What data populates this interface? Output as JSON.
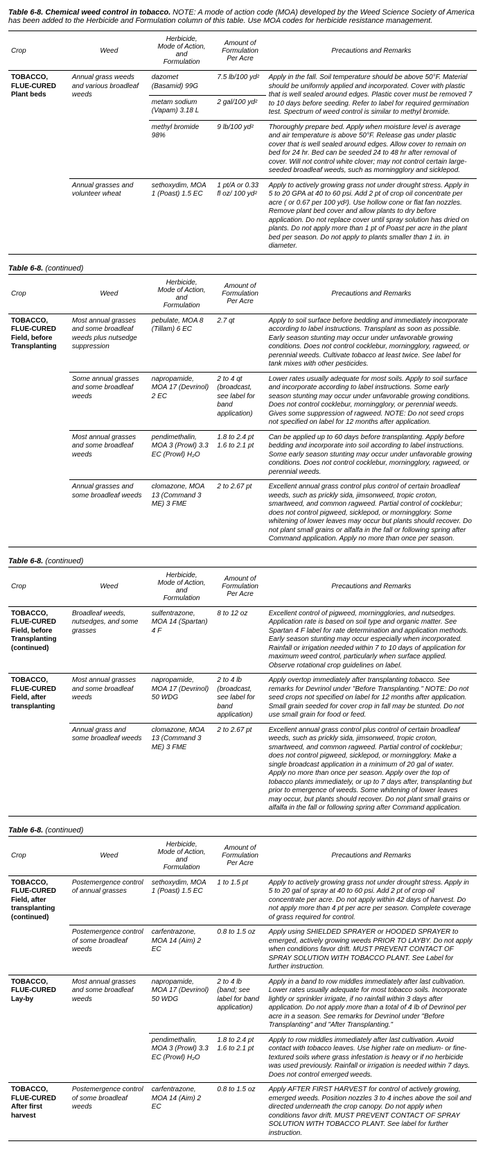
{
  "title": "Table 6-8. Chemical weed control in tobacco.",
  "note": " NOTE: A mode of action code (MOA) developed by the Weed Science Society of America has been added to the Herbicide and Formulation column of this table. Use MOA codes for herbicide resistance management.",
  "cont": "Table 6-8.",
  "cont_suffix": " (continued)",
  "headers": {
    "crop": "Crop",
    "weed": "Weed",
    "herb": "Herbicide,\nMode of Action,\nand\nFormulation",
    "amt": "Amount of\nFormulation\nPer Acre",
    "prec": "Precautions and Remarks"
  },
  "sections": [
    {
      "rows": [
        {
          "crop": "TOBACCO, FLUE-CURED Plant beds",
          "crop_rs": 4,
          "weed": "Annual grass weeds and various broadleaf weeds",
          "weed_rs": 3,
          "herb": "dazomet (Basamid) 99G",
          "amt": "7.5 lb/100 yd²",
          "prec": "Apply in the fall. Soil temperature should be above 50°F. Material should be uniformly applied and incorporated. Cover with plastic that is well sealed around edges. Plastic cover must be removed 7 to 10 days before seeding. Refer to label for required germination test. Spectrum of weed control is similar to methyl bromide.",
          "prec_rs": 2
        },
        {
          "herb": "metam sodium (Vapam)  3.18 L",
          "amt": "2 gal/100 yd²",
          "herb_top": true,
          "amt_top": true
        },
        {
          "herb": "methyl bromide 98%",
          "amt": "9 lb/100 yd²",
          "prec": "Thoroughly prepare bed. Apply when moisture level is average and air temperature is above 50°F. Release gas under plastic cover that is well sealed around edges. Allow cover to remain on bed for 24 hr. Bed can be seeded 24 to 48 hr after removal of cover. Will not control white clover; may not control certain large-seeded broadleaf weeds, such as morningglory and sicklepod.",
          "herb_top": true,
          "amt_top": true,
          "prec_top": true
        },
        {
          "weed": "Annual grasses and volunteer wheat",
          "herb": "sethoxydim, MOA 1 (Poast) 1.5 EC",
          "amt": "1 pt/A or 0.33 fl oz/ 100 yd²",
          "prec": "Apply to actively growing grass not under drought stress. Apply in 5 to 20 GPA at 40 to 60 psi. Add 2 pt of crop oil concentrate per acre ( or 0.67 per 100 yd²). Use hollow cone or flat fan nozzles. Remove plant bed cover and allow plants to dry before application. Do not replace cover until spray solution has dried on plants. Do not apply more than 1 pt of Poast per acre in the plant bed per season. Do not apply to plants smaller than 1 in. in diameter.",
          "row_top": true
        }
      ]
    },
    {
      "rows": [
        {
          "crop": "TOBACCO, FLUE-CURED Field, before Transplanting",
          "crop_rs": 4,
          "weed": "Most annual grasses and some broadleaf weeds  plus  nutsedge suppression",
          "herb": "pebulate, MOA 8 (Tillam) 6 EC",
          "amt": "2.7 qt",
          "prec": "Apply to soil surface before bedding and immediately incorporate according to label instructions. Transplant as soon as possible. Early season stunting may occur under unfavorable growing conditions. Does not control cocklebur, morningglory, ragweed, or perennial weeds. Cultivate tobacco at least twice. See label for tank mixes with other pesticides."
        },
        {
          "weed": "Some annual grasses and some broadleaf weeds",
          "herb": "napropamide, MOA 17 (Devrinol) 2 EC",
          "amt": "2 to 4 qt (broadcast, see label for band application)",
          "prec": "Lower rates usually adequate for most soils. Apply to soil surface and incorporate according to label instructions. Some early season stunting may occur under unfavorable growing conditions. Does not control cocklebur, morningglory, or perennial weeds. Gives some suppression of ragweed. NOTE:  Do not seed crops not specified on label for 12 months after application.",
          "row_top": true
        },
        {
          "weed": "Most annual grasses and some broadleaf weeds",
          "herb": "pendimethalin, MOA 3 (Prowl) 3.3 EC (Prowl) H₂O",
          "amt": "1.8 to 2.4 pt 1.6 to 2.1 pt",
          "prec": "Can be applied up to 60 days before transplanting. Apply before bedding and incorporate into soil according to label instructions. Some early season stunting may occur under unfavorable growing conditions. Does not control cocklebur, morningglory, ragweed, or perennial weeds.",
          "row_top": true
        },
        {
          "weed": "Annual grasses and some broadleaf weeds",
          "herb": "clomazone, MOA 13 (Command 3 ME) 3 FME",
          "amt": "2 to 2.67 pt",
          "prec": "Excellent annual grass control plus control of certain broadleaf weeds, such as prickly sida, jimsonweed, tropic croton, smartweed, and common ragweed. Partial control of cocklebur; does not control pigweed, sicklepod, or morningglory. Some whitening of lower leaves may occur but plants should recover. Do not plant small grains or alfalfa in the fall or following spring after Command application. Apply no more than once per season.",
          "row_top": true
        }
      ]
    },
    {
      "rows": [
        {
          "crop": "TOBACCO, FLUE-CURED Field, before Transplanting (continued)",
          "weed": "Broadleaf weeds, nutsedges, and some grasses",
          "herb": "sulfentrazone, MOA 14 (Spartan)  4 F",
          "amt": "8 to 12 oz",
          "prec": "Excellent control of pigweed, morningglories, and nutsedges. Application rate is based on soil type and organic matter. See Spartan 4 F label for rate determination and application methods. Early season stunting may occur especially when incorporated. Rainfall or irrigation needed within 7 to 10 days of application for maximum weed control, particularly when surface applied. Observe rotational crop guidelines on label."
        },
        {
          "crop": "TOBACCO, FLUE-CURED Field, after transplanting",
          "crop_rs": 2,
          "weed": "Most annual grasses and some broadleaf weeds",
          "herb": "napropamide, MOA 17 (Devrinol) 50 WDG",
          "amt": "2 to 4 lb (broadcast, see label for band application)",
          "prec": "Apply overtop immediately after transplanting tobacco. See remarks for Devrinol under \"Before Transplanting.\"  NOTE: Do not seed crops not specified on label for 12 months after application. Small grain seeded for cover crop in fall may be stunted. Do not use small grain for food or feed.",
          "row_top": true
        },
        {
          "weed": "Annual grass and some broadleaf weeds",
          "herb": "clomazone, MOA 13 (Command 3 ME) 3 FME",
          "amt": "2 to 2.67 pt",
          "prec": "Excellent annual grass control plus control of certain broadleaf weeds, such as prickly sida, jimsonweed, tropic croton, smartweed, and common ragweed. Partial control of cocklebur; does not control pigweed, sicklepod, or morningglory. Make a single broadcast application in a minimum of 20 gal of water. Apply no more than once per season. Apply over the top of tobacco plants immediately, or up to 7 days after, transplanting but prior to emergence of weeds. Some whitening of lower leaves may occur, but plants should recover. Do not plant small grains or alfalfa in the fall or following spring after Command application.",
          "row_top": true
        }
      ]
    },
    {
      "rows": [
        {
          "crop": "TOBACCO, FLUE-CURED Field, after transplanting (continued)",
          "crop_rs": 2,
          "weed": "Postemergence control of annual grasses",
          "herb": "sethoxydim, MOA 1 (Poast) 1.5 EC",
          "amt": "1 to 1.5 pt",
          "prec": "Apply to actively growing grass not under drought stress. Apply in 5 to 20 gal of spray at 40 to 60 psi. Add 2 pt of crop oil concentrate per acre. Do not apply within 42 days of harvest. Do not apply more than 4 pt per acre per season. Complete coverage of grass required for control."
        },
        {
          "weed": "Postemergence control of some broadleaf weeds",
          "herb": "carfentrazone, MOA 14 (Aim) 2 EC",
          "amt": "0.8 to 1.5 oz",
          "prec": "Apply using SHIELDED SPRAYER or HOODED SPRAYER to emerged, actively growing weeds PRIOR TO LAYBY. Do not apply when conditions favor drift. MUST PREVENT CONTACT OF SPRAY SOLUTION WITH TOBACCO PLANT. See Label for further instruction.",
          "row_top": true
        },
        {
          "crop": "TOBACCO, FLUE-CURED Lay-by",
          "crop_rs": 2,
          "weed": "Most annual grasses and some broadleaf weeds",
          "weed_rs": 2,
          "herb": "napropamide, MOA 17 (Devrinol) 50 WDG",
          "amt": "2 to 4 lb (band; see label for band application)",
          "prec": "Apply in a band to row middles immediately after last cultivation. Lower rates usually adequate for most tobacco soils. Incorporate lightly or sprinkler irrigate, if no rainfall within 3 days after application. Do not apply more than a total of 4 lb of Devrinol per acre in a season. See remarks for Devrinol under \"Before Transplanting\" and \"After Transplanting.\"",
          "row_top": true
        },
        {
          "herb": "pendimethalin, MOA 3 (Prowl) 3.3 EC (Prowl) H₂O",
          "amt": "1.8 to 2.4 pt 1.6 to 2.1 pt",
          "prec": "Apply to row middles immediately after last cultivation. Avoid contact with tobacco leaves. Use higher rate on medium- or fine-textured soils where grass infestation is heavy or if no herbicide was used previously. Rainfall or irrigation is needed within 7 days. Does not control emerged weeds.",
          "herb_top": true,
          "amt_top": true,
          "prec_top": true
        },
        {
          "crop": "TOBACCO, FLUE-CURED After first harvest",
          "weed": "Postemergence control of some broadleaf weeds",
          "herb": "carfentrazone, MOA 14 (Aim) 2 EC",
          "amt": "0.8 to 1.5 oz",
          "prec": "Apply AFTER FIRST HARVEST for control of actively growing, emerged weeds. Position nozzles 3 to 4 inches above the soil and directed underneath the crop canopy. Do not apply when conditions favor drift. MUST PREVENT CONTACT OF SPRAY SOLUTION WITH TOBACCO PLANT. See label for further instruction.",
          "row_top": true
        }
      ]
    }
  ]
}
